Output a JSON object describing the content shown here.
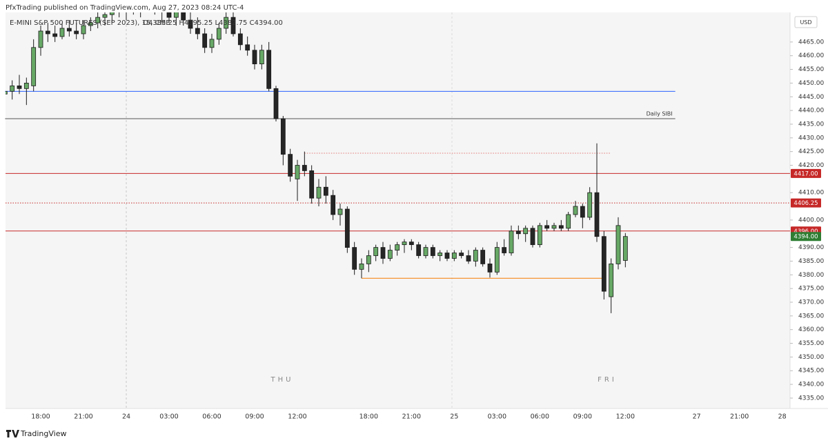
{
  "header": "PfxTrading published on TradingView.com, Aug 27, 2023 08:24 UTC-4",
  "footer": "TradingView",
  "chart_data": {
    "type": "candlestick",
    "symbol": "E-MINI S&P 500 FUTURES (SEP 2023), 15, CME",
    "ohlc_text": "O4385.25 H4395.25 L4382.75 C4394.00",
    "currency": "USD",
    "day_labels": [
      "THU",
      "FRI"
    ],
    "up_color": "#67a866",
    "down_color": "#262626",
    "categories": [
      null,
      null,
      null,
      null,
      null,
      "18:00",
      null,
      null,
      null,
      null,
      null,
      "21:00",
      null,
      null,
      null,
      null,
      null,
      "24",
      null,
      null,
      null,
      null,
      null,
      "03:00",
      null,
      null,
      null,
      null,
      null,
      "06:00",
      null,
      null,
      null,
      null,
      null,
      "09:00",
      null,
      null,
      null,
      null,
      null,
      "12:00",
      null,
      null,
      null,
      null,
      null,
      null,
      null,
      null,
      null,
      "18:00",
      null,
      null,
      null,
      null,
      null,
      "21:00",
      null,
      null,
      null,
      null,
      null,
      "25",
      null,
      null,
      null,
      null,
      null,
      "03:00",
      null,
      null,
      null,
      null,
      null,
      "06:00",
      null,
      null,
      null,
      null,
      null,
      "09:00",
      null,
      null,
      null,
      null,
      null,
      "12:00",
      null,
      null,
      null,
      null,
      null,
      null,
      null,
      null,
      null,
      "27",
      null,
      null,
      null,
      null,
      null,
      "21:00",
      null,
      null,
      null,
      null,
      null,
      "28"
    ],
    "open": [
      4446,
      4447,
      4449,
      4448,
      4449,
      4463,
      4469,
      4468,
      4467,
      4470,
      4469,
      4468,
      4471,
      4472,
      4474,
      4475,
      4477,
      4476,
      4478,
      4477,
      4479,
      4478,
      4477,
      4476,
      4474,
      4476,
      4473,
      4470,
      4468,
      4463,
      4466,
      4470,
      4474,
      4468,
      4464,
      4462,
      4457,
      4462,
      4448,
      4437,
      4424,
      4415,
      4420,
      4418,
      4408,
      4412,
      4409,
      4402,
      4404,
      4390,
      4382,
      4384,
      4387,
      4390,
      4386,
      4389,
      4391,
      4392,
      4391,
      4387,
      4390,
      4387,
      4388,
      4386,
      4388,
      4387,
      4385,
      4389,
      4384,
      4381,
      4390,
      4388,
      4396,
      4395,
      4397,
      4391,
      4398,
      4397,
      4398,
      4397,
      4402,
      4405,
      4401,
      4410,
      4394,
      4372,
      4384,
      4385.25,
      null,
      null,
      null,
      null,
      null,
      null,
      null,
      null,
      null,
      null,
      null,
      null,
      null,
      null,
      null,
      null,
      null,
      null,
      null,
      null,
      null,
      null
    ],
    "high": [
      4449,
      4451,
      4453,
      4452,
      4466,
      4471,
      4472,
      4471,
      4472,
      4473,
      4472,
      4473,
      4474,
      4476,
      4477,
      4479,
      4480,
      4479,
      4481,
      4480,
      4482,
      4481,
      4480,
      4479,
      4478,
      4478,
      4476,
      4474,
      4470,
      4468,
      4472,
      4476,
      4476,
      4470,
      4467,
      4464,
      4464,
      4465,
      4449,
      4438,
      4426,
      4422,
      4425,
      4420,
      4415,
      4416,
      4411,
      4406,
      4405,
      4392,
      4386,
      4389,
      4391,
      4392,
      4391,
      4392,
      4393,
      4393,
      4392,
      4391,
      4391,
      4389,
      4389,
      4389,
      4389,
      4389,
      4390,
      4390,
      4386,
      4392,
      4393,
      4398,
      4398,
      4398,
      4398,
      4399,
      4400,
      4399,
      4400,
      4403,
      4407,
      4406,
      4412,
      4428,
      4396,
      4386,
      4401,
      4395.25,
      null,
      null,
      null,
      null,
      null,
      null,
      null,
      null,
      null,
      null,
      null,
      null,
      null,
      null,
      null,
      null,
      null,
      null,
      null,
      null,
      null,
      null
    ],
    "low": [
      4443,
      4444,
      4446,
      4442,
      4447,
      4460,
      4465,
      4465,
      4466,
      4467,
      4466,
      4466,
      4469,
      4470,
      4471,
      4472,
      4474,
      4473,
      4475,
      4474,
      4476,
      4475,
      4473,
      4472,
      4471,
      4471,
      4468,
      4466,
      4461,
      4461,
      4464,
      4468,
      4467,
      4462,
      4460,
      4455,
      4455,
      4447,
      4436,
      4420,
      4414,
      4407,
      4416,
      4406,
      4405,
      4406,
      4400,
      4398,
      4388,
      4380,
      4378.75,
      4381,
      4385,
      4384,
      4385,
      4387,
      4388,
      4389,
      4386,
      4386,
      4386,
      4385,
      4385,
      4385,
      4386,
      4384,
      4383,
      4383,
      4379,
      4380,
      4387,
      4387,
      4393,
      4392,
      4390,
      4390,
      4396,
      4396,
      4396,
      4396,
      4401,
      4397,
      4400,
      4392,
      4371,
      4366,
      4382,
      4382.75,
      null,
      null,
      null,
      null,
      null,
      null,
      null,
      null,
      null,
      null,
      null,
      null,
      null,
      null,
      null,
      null,
      null,
      null,
      null,
      null,
      null,
      null
    ],
    "close": [
      4447,
      4449,
      4448,
      4450,
      4463,
      4469,
      4468,
      4467,
      4470,
      4469,
      4468,
      4471,
      4472,
      4474,
      4475,
      4477,
      4476,
      4478,
      4477,
      4479,
      4478,
      4477,
      4476,
      4474,
      4476,
      4473,
      4470,
      4468,
      4463,
      4466,
      4470,
      4474,
      4468,
      4464,
      4462,
      4457,
      4462,
      4448,
      4437,
      4424,
      4416,
      4420,
      4418,
      4408,
      4412,
      4409,
      4402,
      4404,
      4390,
      4382,
      4384,
      4387,
      4390,
      4386,
      4389,
      4391,
      4392,
      4391,
      4387,
      4390,
      4387,
      4388,
      4386,
      4388,
      4387,
      4385,
      4389,
      4384,
      4381,
      4390,
      4388,
      4396,
      4395,
      4397,
      4391,
      4398,
      4397,
      4398,
      4397,
      4402,
      4405,
      4401,
      4410,
      4394,
      4374,
      4384,
      4398,
      4394,
      null,
      null,
      null,
      null,
      null,
      null,
      null,
      null,
      null,
      null,
      null,
      null,
      null,
      null,
      null,
      null,
      null,
      null,
      null,
      null,
      null,
      null
    ],
    "ylim": [
      4331.2,
      4475.8
    ],
    "yticks": [
      {
        "value": 4335,
        "label": "4335.00"
      },
      {
        "value": 4340,
        "label": "4340.00"
      },
      {
        "value": 4345,
        "label": "4345.00"
      },
      {
        "value": 4350,
        "label": "4350.00"
      },
      {
        "value": 4355,
        "label": "4355.00"
      },
      {
        "value": 4360,
        "label": "4360.00"
      },
      {
        "value": 4365,
        "label": "4365.00"
      },
      {
        "value": 4370,
        "label": "4370.00"
      },
      {
        "value": 4375,
        "label": "4375.00"
      },
      {
        "value": 4380,
        "label": "4380.00"
      },
      {
        "value": 4385,
        "label": "4385.00"
      },
      {
        "value": 4390,
        "label": "4390.00"
      },
      {
        "value": 4400,
        "label": "4400.00"
      },
      {
        "value": 4410,
        "label": "4410.00"
      },
      {
        "value": 4420,
        "label": "4420.00"
      },
      {
        "value": 4425,
        "label": "4425.00"
      },
      {
        "value": 4430,
        "label": "4430.00"
      },
      {
        "value": 4435,
        "label": "4435.00"
      },
      {
        "value": 4440,
        "label": "4440.00"
      },
      {
        "value": 4445,
        "label": "4445.00"
      },
      {
        "value": 4450,
        "label": "4450.00"
      },
      {
        "value": 4455,
        "label": "4455.00"
      },
      {
        "value": 4460,
        "label": "4460.00"
      },
      {
        "value": 4465,
        "label": "4465.00"
      }
    ],
    "levels": [
      {
        "value": 4447,
        "color": "#2962ff",
        "style": "solid",
        "x": [
          0,
          94
        ]
      },
      {
        "value": 4437,
        "color": "#555555",
        "style": "solid",
        "x": [
          0,
          94
        ],
        "text": "Daily SIBI"
      },
      {
        "value": 4424.4,
        "color": "#e57373",
        "style": "dotted",
        "x": [
          42,
          85
        ]
      },
      {
        "value": 4417,
        "color": "#c62828",
        "style": "solid",
        "label": "4417.00"
      },
      {
        "value": 4406.25,
        "color": "#c62828",
        "style": "dotted",
        "label": "4406.25"
      },
      {
        "value": 4396,
        "color": "#c62828",
        "style": "solid",
        "label": "4396.00"
      },
      {
        "value": 4378.75,
        "color": "#f57c00",
        "style": "solid",
        "x": [
          50,
          84
        ]
      }
    ],
    "last_price": {
      "value": 4394,
      "label": "4394.00",
      "color": "#2e7d32"
    }
  }
}
